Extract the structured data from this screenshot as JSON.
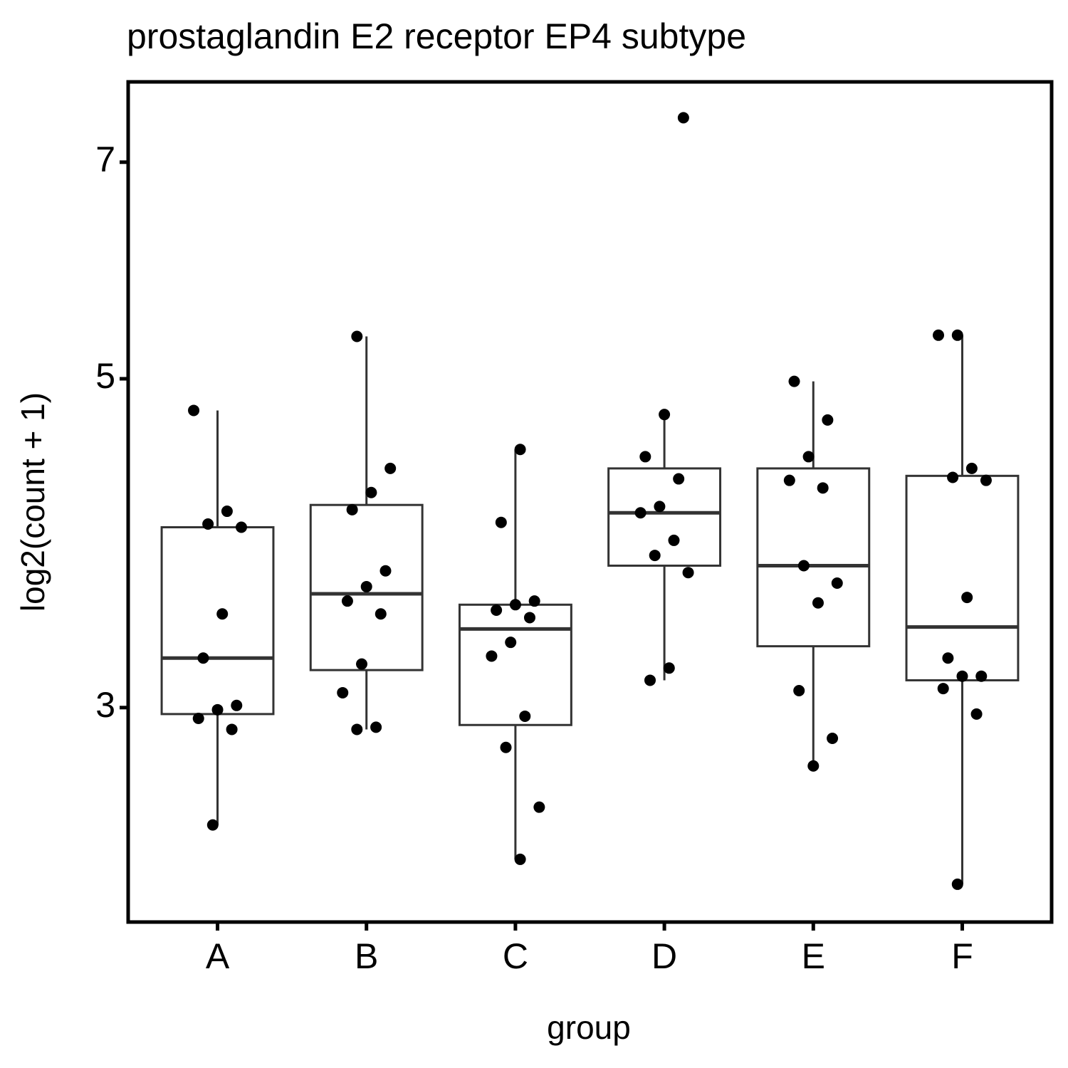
{
  "chart_data": {
    "type": "box",
    "title": "prostaglandin E2 receptor EP4 subtype",
    "x_label": "group",
    "y_label": "log2(count + 1)",
    "log_scale": true,
    "categories": [
      "A",
      "B",
      "C",
      "D",
      "E",
      "F"
    ],
    "ylim": [
      2.15,
      7.93
    ],
    "yticks": [
      3,
      5,
      7
    ],
    "grid": false,
    "box_color": "#333333",
    "point_color": "#000000",
    "boxes": [
      {
        "q1": 2.97,
        "median": 3.24,
        "q3": 3.97,
        "whisker_low": 2.5,
        "whisker_high": 4.76,
        "points": [
          4.76,
          4.07,
          3.99,
          3.97,
          3.47,
          3.24,
          3.01,
          2.99,
          2.95,
          2.9,
          2.5
        ]
      },
      {
        "q1": 3.18,
        "median": 3.58,
        "q3": 4.11,
        "whisker_low": 2.9,
        "whisker_high": 5.34,
        "points": [
          5.34,
          4.35,
          4.19,
          4.08,
          3.71,
          3.62,
          3.54,
          3.47,
          3.21,
          3.07,
          2.91,
          2.9
        ]
      },
      {
        "q1": 2.92,
        "median": 3.39,
        "q3": 3.52,
        "whisker_low": 2.37,
        "whisker_high": 4.48,
        "points": [
          4.48,
          4.0,
          3.54,
          3.52,
          3.49,
          3.45,
          3.32,
          3.25,
          2.96,
          2.82,
          2.57,
          2.37
        ]
      },
      {
        "q1": 3.74,
        "median": 4.06,
        "q3": 4.35,
        "whisker_low": 3.13,
        "whisker_high": 4.73,
        "points": [
          7.5,
          4.73,
          4.43,
          4.28,
          4.1,
          4.06,
          3.89,
          3.8,
          3.7,
          3.19,
          3.13
        ]
      },
      {
        "q1": 3.3,
        "median": 3.74,
        "q3": 4.35,
        "whisker_low": 2.74,
        "whisker_high": 4.98,
        "points": [
          4.98,
          4.69,
          4.43,
          4.27,
          4.22,
          3.74,
          3.64,
          3.53,
          3.08,
          2.86,
          2.74
        ]
      },
      {
        "q1": 3.13,
        "median": 3.4,
        "q3": 4.3,
        "whisker_low": 2.28,
        "whisker_high": 5.35,
        "points": [
          5.35,
          5.35,
          4.35,
          4.29,
          4.27,
          3.56,
          3.24,
          3.15,
          3.15,
          3.09,
          2.97,
          2.28
        ]
      }
    ]
  }
}
